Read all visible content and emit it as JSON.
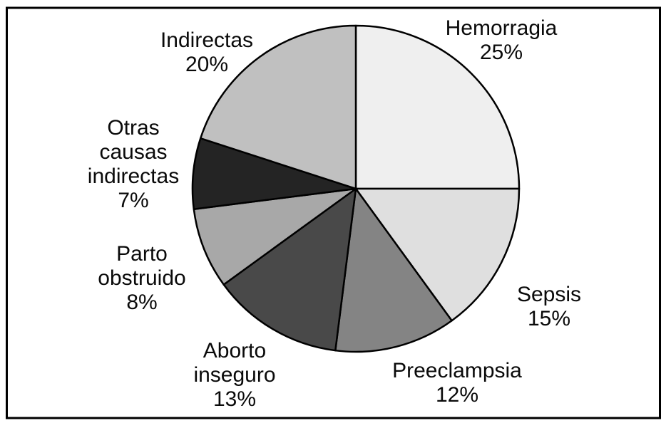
{
  "chart_data": {
    "type": "pie",
    "title": "",
    "start_angle_deg": 0,
    "direction": "clockwise",
    "stroke_color": "#000000",
    "frame_color": "#000000",
    "background": "#ffffff",
    "legend_position": "none",
    "labels_position": "outside",
    "slices": [
      {
        "label": "Hemorragia",
        "value": 25,
        "pct_label": "25%",
        "color": "#efefef"
      },
      {
        "label": "Sepsis",
        "value": 15,
        "pct_label": "15%",
        "color": "#dfdfdf"
      },
      {
        "label": "Preeclampsia",
        "value": 12,
        "pct_label": "12%",
        "color": "#848484"
      },
      {
        "label": "Aborto inseguro",
        "value": 13,
        "pct_label": "13%",
        "color": "#494949"
      },
      {
        "label": "Parto obstruido",
        "value": 8,
        "pct_label": "8%",
        "color": "#a8a8a8"
      },
      {
        "label": "Otras causas indirectas",
        "value": 7,
        "pct_label": "7%",
        "color": "#242424"
      },
      {
        "label": "Indirectas",
        "value": 20,
        "pct_label": "20%",
        "color": "#c0c0c0"
      }
    ]
  }
}
